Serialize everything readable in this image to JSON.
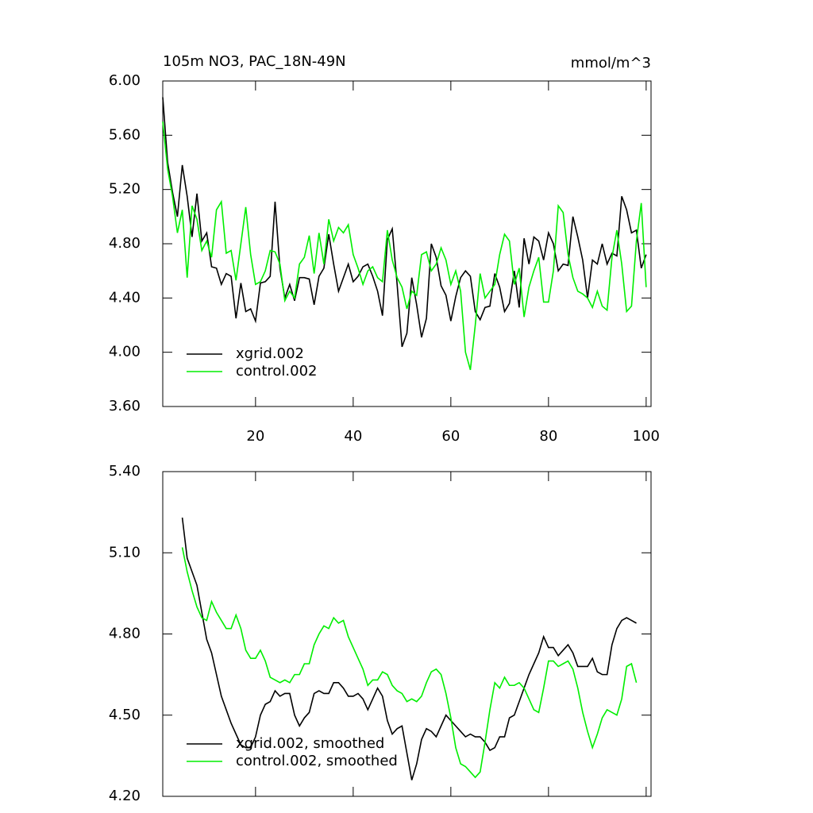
{
  "chart_data": [
    {
      "type": "line",
      "title": "105m NO3, PAC_18N-49N",
      "units": "mmol/m^3",
      "x": [
        1,
        2,
        3,
        4,
        5,
        6,
        7,
        8,
        9,
        10,
        11,
        12,
        13,
        14,
        15,
        16,
        17,
        18,
        19,
        20,
        21,
        22,
        23,
        24,
        25,
        26,
        27,
        28,
        29,
        30,
        31,
        32,
        33,
        34,
        35,
        36,
        37,
        38,
        39,
        40,
        41,
        42,
        43,
        44,
        45,
        46,
        47,
        48,
        49,
        50,
        51,
        52,
        53,
        54,
        55,
        56,
        57,
        58,
        59,
        60,
        61,
        62,
        63,
        64,
        65,
        66,
        67,
        68,
        69,
        70,
        71,
        72,
        73,
        74,
        75,
        76,
        77,
        78,
        79,
        80,
        81,
        82,
        83,
        84,
        85,
        86,
        87,
        88,
        89,
        90,
        91,
        92,
        93,
        94,
        95,
        96,
        97,
        98,
        99,
        100
      ],
      "series": [
        {
          "name": "xgrid.002",
          "color": "#000000",
          "values": [
            5.88,
            5.4,
            5.18,
            5.0,
            5.38,
            5.15,
            4.85,
            5.17,
            4.82,
            4.88,
            4.63,
            4.62,
            4.5,
            4.58,
            4.56,
            4.25,
            4.51,
            4.3,
            4.32,
            4.23,
            4.51,
            4.52,
            4.56,
            5.11,
            4.62,
            4.4,
            4.5,
            4.38,
            4.55,
            4.55,
            4.54,
            4.35,
            4.56,
            4.62,
            4.87,
            4.65,
            4.45,
            4.55,
            4.65,
            4.52,
            4.56,
            4.63,
            4.65,
            4.56,
            4.45,
            4.27,
            4.83,
            4.91,
            4.5,
            4.04,
            4.14,
            4.55,
            4.35,
            4.11,
            4.25,
            4.8,
            4.7,
            4.49,
            4.42,
            4.23,
            4.41,
            4.55,
            4.6,
            4.56,
            4.3,
            4.24,
            4.33,
            4.34,
            4.58,
            4.48,
            4.3,
            4.36,
            4.6,
            4.33,
            4.84,
            4.65,
            4.85,
            4.82,
            4.68,
            4.88,
            4.8,
            4.6,
            4.65,
            4.64,
            5.0,
            4.85,
            4.68,
            4.4,
            4.68,
            4.65,
            4.8,
            4.65,
            4.73,
            4.71,
            5.15,
            5.05,
            4.88,
            4.9,
            4.62,
            4.72
          ]
        },
        {
          "name": "control.002",
          "color": "#00ee00",
          "values": [
            5.7,
            5.35,
            5.15,
            4.88,
            5.05,
            4.55,
            5.08,
            4.98,
            4.75,
            4.82,
            4.7,
            5.05,
            5.11,
            4.73,
            4.75,
            4.53,
            4.8,
            5.07,
            4.72,
            4.5,
            4.52,
            4.6,
            4.75,
            4.74,
            4.65,
            4.38,
            4.45,
            4.4,
            4.65,
            4.7,
            4.86,
            4.58,
            4.88,
            4.65,
            4.98,
            4.82,
            4.92,
            4.88,
            4.94,
            4.72,
            4.62,
            4.5,
            4.6,
            4.63,
            4.55,
            4.52,
            4.9,
            4.68,
            4.55,
            4.48,
            4.32,
            4.45,
            4.42,
            4.72,
            4.74,
            4.6,
            4.65,
            4.77,
            4.68,
            4.5,
            4.6,
            4.45,
            4.0,
            3.87,
            4.2,
            4.58,
            4.4,
            4.45,
            4.5,
            4.72,
            4.87,
            4.82,
            4.5,
            4.62,
            4.26,
            4.48,
            4.6,
            4.7,
            4.37,
            4.37,
            4.6,
            5.08,
            5.03,
            4.72,
            4.55,
            4.45,
            4.43,
            4.4,
            4.33,
            4.45,
            4.34,
            4.31,
            4.7,
            4.9,
            4.65,
            4.3,
            4.34,
            4.82,
            5.1,
            4.48
          ]
        }
      ],
      "xlim": [
        1,
        101
      ],
      "xticks": [
        20,
        40,
        60,
        80,
        100
      ],
      "ylim": [
        3.6,
        6
      ],
      "yticks": [
        {
          "value": 3.6,
          "label": "3.60"
        },
        {
          "value": 4,
          "label": "4.00"
        },
        {
          "value": 4.4,
          "label": "4.40"
        },
        {
          "value": 4.8,
          "label": "4.80"
        },
        {
          "value": 5.2,
          "label": "5.20"
        },
        {
          "value": 5.6,
          "label": "5.60"
        },
        {
          "value": 6,
          "label": "6.00"
        }
      ],
      "legend": "lower left",
      "xtick_labels": true
    },
    {
      "type": "line",
      "x": [
        5,
        6,
        7,
        8,
        9,
        10,
        11,
        12,
        13,
        14,
        15,
        16,
        17,
        18,
        19,
        20,
        21,
        22,
        23,
        24,
        25,
        26,
        27,
        28,
        29,
        30,
        31,
        32,
        33,
        34,
        35,
        36,
        37,
        38,
        39,
        40,
        41,
        42,
        43,
        44,
        45,
        46,
        47,
        48,
        49,
        50,
        51,
        52,
        53,
        54,
        55,
        56,
        57,
        58,
        59,
        60,
        61,
        62,
        63,
        64,
        65,
        66,
        67,
        68,
        69,
        70,
        71,
        72,
        73,
        74,
        75,
        76,
        77,
        78,
        79,
        80,
        81,
        82,
        83,
        84,
        85,
        86,
        87,
        88,
        89,
        90,
        91,
        92,
        93,
        94,
        95,
        96,
        97,
        98
      ],
      "series": [
        {
          "name": "xgrid.002, smoothed",
          "color": "#000000",
          "values": [
            5.23,
            5.08,
            5.03,
            4.98,
            4.88,
            4.78,
            4.73,
            4.65,
            4.57,
            4.52,
            4.47,
            4.43,
            4.39,
            4.38,
            4.38,
            4.42,
            4.5,
            4.54,
            4.55,
            4.59,
            4.57,
            4.58,
            4.58,
            4.5,
            4.46,
            4.49,
            4.51,
            4.58,
            4.59,
            4.58,
            4.58,
            4.62,
            4.62,
            4.6,
            4.57,
            4.57,
            4.58,
            4.56,
            4.52,
            4.56,
            4.6,
            4.57,
            4.48,
            4.43,
            4.45,
            4.46,
            4.36,
            4.26,
            4.32,
            4.41,
            4.45,
            4.44,
            4.42,
            4.46,
            4.5,
            4.48,
            4.46,
            4.44,
            4.42,
            4.43,
            4.42,
            4.42,
            4.4,
            4.37,
            4.38,
            4.42,
            4.42,
            4.49,
            4.5,
            4.55,
            4.6,
            4.65,
            4.69,
            4.73,
            4.79,
            4.75,
            4.75,
            4.72,
            4.74,
            4.76,
            4.73,
            4.68,
            4.68,
            4.68,
            4.71,
            4.66,
            4.65,
            4.65,
            4.76,
            4.82,
            4.85,
            4.86,
            4.85,
            4.84
          ]
        },
        {
          "name": "control.002, smoothed",
          "color": "#00ee00",
          "values": [
            5.12,
            5.03,
            4.96,
            4.9,
            4.86,
            4.85,
            4.92,
            4.88,
            4.85,
            4.82,
            4.82,
            4.87,
            4.82,
            4.74,
            4.71,
            4.71,
            4.74,
            4.7,
            4.64,
            4.63,
            4.62,
            4.63,
            4.62,
            4.65,
            4.65,
            4.69,
            4.69,
            4.76,
            4.8,
            4.83,
            4.82,
            4.86,
            4.84,
            4.85,
            4.79,
            4.75,
            4.71,
            4.67,
            4.61,
            4.63,
            4.63,
            4.66,
            4.65,
            4.61,
            4.59,
            4.58,
            4.55,
            4.56,
            4.55,
            4.57,
            4.62,
            4.66,
            4.67,
            4.65,
            4.58,
            4.49,
            4.38,
            4.32,
            4.31,
            4.29,
            4.27,
            4.29,
            4.4,
            4.52,
            4.62,
            4.6,
            4.64,
            4.61,
            4.61,
            4.62,
            4.6,
            4.56,
            4.52,
            4.51,
            4.6,
            4.7,
            4.7,
            4.68,
            4.69,
            4.7,
            4.67,
            4.6,
            4.51,
            4.44,
            4.38,
            4.43,
            4.49,
            4.52,
            4.51,
            4.5,
            4.56,
            4.68,
            4.69,
            4.62
          ]
        }
      ],
      "xlim": [
        1,
        101
      ],
      "xticks": [
        20,
        40,
        60,
        80,
        100
      ],
      "ylim": [
        4.2,
        5.4
      ],
      "yticks": [
        {
          "value": 4.2,
          "label": "4.20"
        },
        {
          "value": 4.5,
          "label": "4.50"
        },
        {
          "value": 4.8,
          "label": "4.80"
        },
        {
          "value": 5.1,
          "label": "5.10"
        },
        {
          "value": 5.4,
          "label": "5.40"
        }
      ],
      "legend": "lower left",
      "xtick_labels": false
    }
  ]
}
